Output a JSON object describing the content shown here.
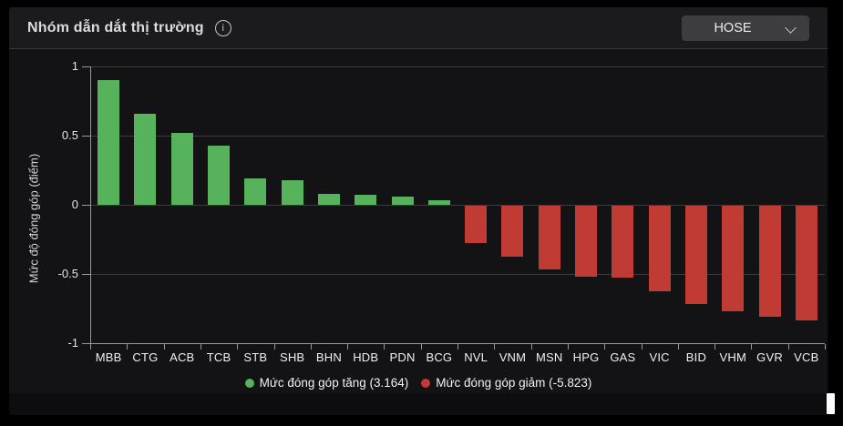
{
  "header": {
    "title": "Nhóm dẫn dắt thị trường",
    "info_icon": "i",
    "dropdown": {
      "value": "HOSE"
    }
  },
  "chart_data": {
    "type": "bar",
    "title": "Nhóm dẫn dắt thị trường",
    "xlabel": "",
    "ylabel": "Mức độ đóng góp (điểm)",
    "ylim": [
      -1,
      1
    ],
    "grid": true,
    "legend_position": "bottom",
    "yticks": [
      {
        "label": "1",
        "value": 1
      },
      {
        "label": "0.5",
        "value": 0.5
      },
      {
        "label": "0",
        "value": 0
      },
      {
        "label": "-0.5",
        "value": -0.5
      },
      {
        "label": "-1",
        "value": -1
      }
    ],
    "categories": [
      "MBB",
      "CTG",
      "ACB",
      "TCB",
      "STB",
      "SHB",
      "BHN",
      "HDB",
      "PDN",
      "BCG",
      "NVL",
      "VNM",
      "MSN",
      "HPG",
      "GAS",
      "VIC",
      "BID",
      "VHM",
      "GVR",
      "VCB"
    ],
    "values": [
      0.9,
      0.66,
      0.52,
      0.43,
      0.19,
      0.18,
      0.08,
      0.07,
      0.06,
      0.03,
      -0.27,
      -0.37,
      -0.46,
      -0.51,
      -0.52,
      -0.62,
      -0.71,
      -0.76,
      -0.8,
      -0.83
    ],
    "colors": {
      "positive": "#57b25c",
      "negative": "#c03b33"
    },
    "legend": [
      {
        "label": "Mức đóng góp tăng (3.164)",
        "color": "#57b25c"
      },
      {
        "label": "Mức đóng góp giảm (-5.823)",
        "color": "#c03b33"
      }
    ]
  }
}
